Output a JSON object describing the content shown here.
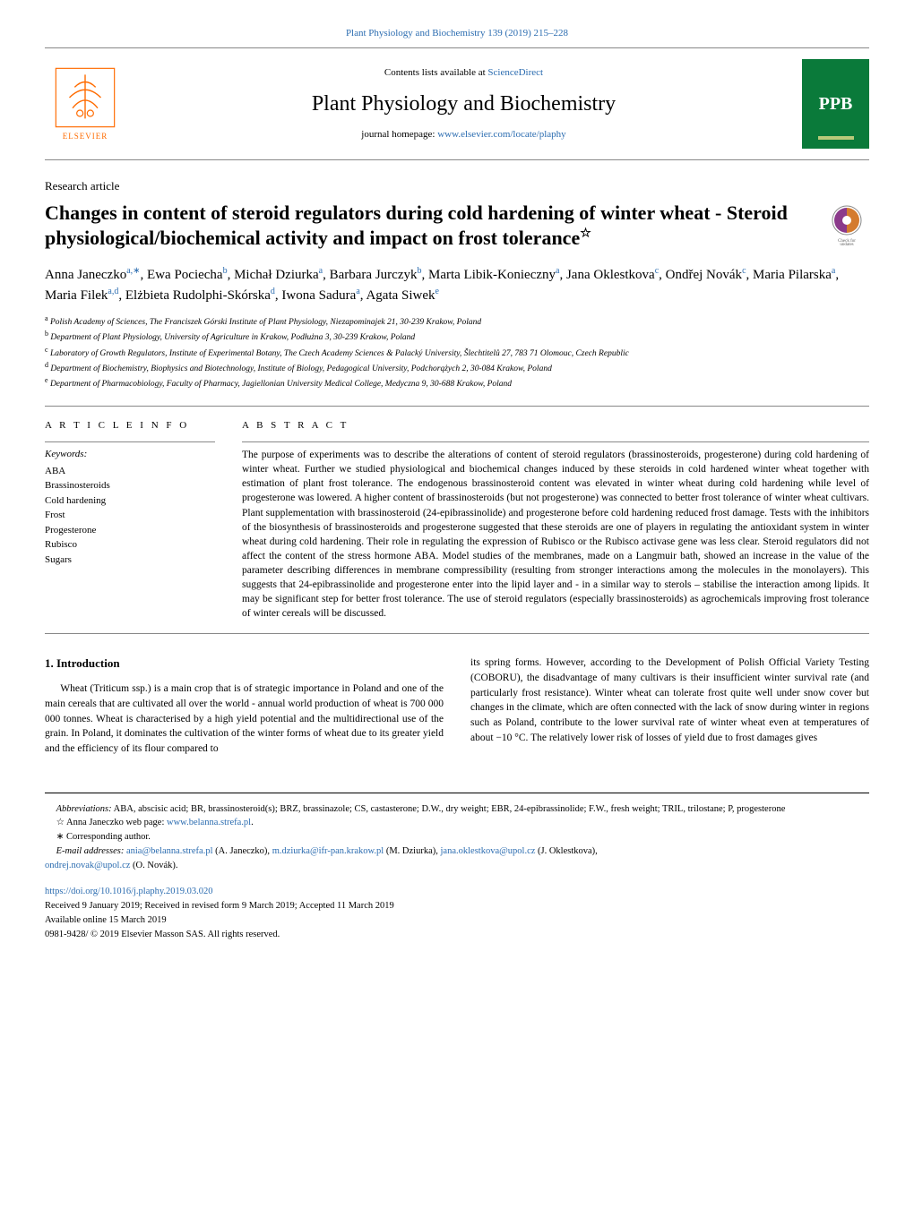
{
  "topJournalLink": "Plant Physiology and Biochemistry 139 (2019) 215–228",
  "header": {
    "contentsText": "Contents lists available at ",
    "contentsLink": "ScienceDirect",
    "journalName": "Plant Physiology and Biochemistry",
    "homepageText": "journal homepage: ",
    "homepageLink": "www.elsevier.com/locate/plaphy",
    "publisherName": "ELSEVIER",
    "coverAbbrev": "PPB"
  },
  "articleType": "Research article",
  "title": "Changes in content of steroid regulators during cold hardening of winter wheat - Steroid physiological/biochemical activity and impact on frost tolerance",
  "titleStar": "☆",
  "authors": [
    {
      "name": "Anna Janeczko",
      "sup": "a,∗"
    },
    {
      "name": "Ewa Pociecha",
      "sup": "b"
    },
    {
      "name": "Michał Dziurka",
      "sup": "a"
    },
    {
      "name": "Barbara Jurczyk",
      "sup": "b"
    },
    {
      "name": "Marta Libik-Konieczny",
      "sup": "a"
    },
    {
      "name": "Jana Oklestkova",
      "sup": "c"
    },
    {
      "name": "Ondřej Novák",
      "sup": "c"
    },
    {
      "name": "Maria Pilarska",
      "sup": "a"
    },
    {
      "name": "Maria Filek",
      "sup": "a,d"
    },
    {
      "name": "Elżbieta Rudolphi-Skórska",
      "sup": "d"
    },
    {
      "name": "Iwona Sadura",
      "sup": "a"
    },
    {
      "name": "Agata Siwek",
      "sup": "e"
    }
  ],
  "affiliations": [
    {
      "sup": "a",
      "text": "Polish Academy of Sciences, The Franciszek Górski Institute of Plant Physiology, Niezapominajek 21, 30-239 Krakow, Poland"
    },
    {
      "sup": "b",
      "text": "Department of Plant Physiology, University of Agriculture in Krakow, Podłużna 3, 30-239 Krakow, Poland"
    },
    {
      "sup": "c",
      "text": "Laboratory of Growth Regulators, Institute of Experimental Botany, The Czech Academy Sciences & Palacký University, Šlechtitelů 27, 783 71 Olomouc, Czech Republic"
    },
    {
      "sup": "d",
      "text": "Department of Biochemistry, Biophysics and Biotechnology, Institute of Biology, Pedagogical University, Podchorążych 2, 30-084 Krakow, Poland"
    },
    {
      "sup": "e",
      "text": "Department of Pharmacobiology, Faculty of Pharmacy, Jagiellonian University Medical College, Medyczna 9, 30-688 Krakow, Poland"
    }
  ],
  "labels": {
    "articleInfo": "A R T I C L E  I N F O",
    "abstract": "A B S T R A C T",
    "keywordsHead": "Keywords:"
  },
  "keywords": [
    "ABA",
    "Brassinosteroids",
    "Cold hardening",
    "Frost",
    "Progesterone",
    "Rubisco",
    "Sugars"
  ],
  "abstractText": "The purpose of experiments was to describe the alterations of content of steroid regulators (brassinosteroids, progesterone) during cold hardening of winter wheat. Further we studied physiological and biochemical changes induced by these steroids in cold hardened winter wheat together with estimation of plant frost tolerance. The endogenous brassinosteroid content was elevated in winter wheat during cold hardening while level of progesterone was lowered. A higher content of brassinosteroids (but not progesterone) was connected to better frost tolerance of winter wheat cultivars. Plant supplementation with brassinosteroid (24-epibrassinolide) and progesterone before cold hardening reduced frost damage. Tests with the inhibitors of the biosynthesis of brassinosteroids and progesterone suggested that these steroids are one of players in regulating the antioxidant system in winter wheat during cold hardening. Their role in regulating the expression of Rubisco or the Rubisco activase gene was less clear. Steroid regulators did not affect the content of the stress hormone ABA. Model studies of the membranes, made on a Langmuir bath, showed an increase in the value of the parameter describing differences in membrane compressibility (resulting from stronger interactions among the molecules in the monolayers). This suggests that 24-epibrassinolide and progesterone enter into the lipid layer and - in a similar way to sterols – stabilise the interaction among lipids. It may be significant step for better frost tolerance. The use of steroid regulators (especially brassinosteroids) as agrochemicals improving frost tolerance of winter cereals will be discussed.",
  "introHeading": "1. Introduction",
  "bodyCol1": "Wheat (Triticum ssp.) is a main crop that is of strategic importance in Poland and one of the main cereals that are cultivated all over the world - annual world production of wheat is 700 000 000 tonnes. Wheat is characterised by a high yield potential and the multidirectional use of the grain. In Poland, it dominates the cultivation of the winter forms of wheat due to its greater yield and the efficiency of its flour compared to",
  "bodyCol2": "its spring forms. However, according to the Development of Polish Official Variety Testing (COBORU), the disadvantage of many cultivars is their insufficient winter survival rate (and particularly frost resistance). Winter wheat can tolerate frost quite well under snow cover but changes in the climate, which are often connected with the lack of snow during winter in regions such as Poland, contribute to the lower survival rate of winter wheat even at temperatures of about −10 °C. The relatively lower risk of losses of yield due to frost damages gives",
  "footnotes": {
    "abbreviationsLabel": "Abbreviations:",
    "abbreviations": " ABA, abscisic acid; BR, brassinosteroid(s); BRZ, brassinazole; CS, castasterone; D.W., dry weight; EBR, 24-epibrassinolide; F.W., fresh weight; TRIL, trilostane; P, progesterone",
    "starNote": "☆ Anna Janeczko web page: ",
    "starLink": "www.belanna.strefa.pl",
    "corrNote": "∗ Corresponding author.",
    "emailLabel": "E-mail addresses: ",
    "emails": [
      {
        "email": "ania@belanna.strefa.pl",
        "name": " (A. Janeczko), "
      },
      {
        "email": "m.dziurka@ifr-pan.krakow.pl",
        "name": " (M. Dziurka), "
      },
      {
        "email": "jana.oklestkova@upol.cz",
        "name": " (J. Oklestkova),"
      }
    ],
    "emailLast": "ondrej.novak@upol.cz",
    "emailLastName": " (O. Novák)."
  },
  "bottom": {
    "doi": "https://doi.org/10.1016/j.plaphy.2019.03.020",
    "received": "Received 9 January 2019; Received in revised form 9 March 2019; Accepted 11 March 2019",
    "online": "Available online 15 March 2019",
    "copyright": "0981-9428/ © 2019 Elsevier Masson SAS. All rights reserved."
  },
  "checkUpdatesLabel": "Check for updates",
  "colors": {
    "link": "#2b6cb0",
    "elsevierOrange": "#ff6b00",
    "coverGreen": "#0a7a3a",
    "borderGray": "#888888"
  }
}
